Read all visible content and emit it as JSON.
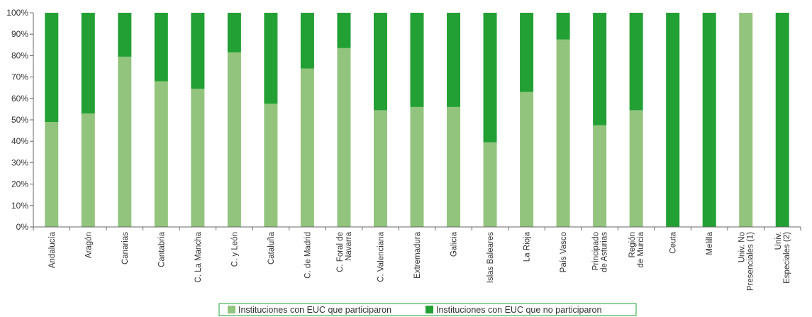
{
  "colors": {
    "participated": "#93c47d",
    "not_participated": "#22a033",
    "axis": "#666666",
    "legend_border": "#22a033"
  },
  "chart_data": {
    "type": "bar",
    "stacked": true,
    "percent": true,
    "ylim": [
      0,
      100
    ],
    "yticks": [
      "0%",
      "10%",
      "20%",
      "30%",
      "40%",
      "50%",
      "60%",
      "70%",
      "80%",
      "90%",
      "100%"
    ],
    "grid": false,
    "legend_position": "bottom-center",
    "categories": [
      [
        "Andalucía"
      ],
      [
        "Aragón"
      ],
      [
        "Canarias"
      ],
      [
        "Cantabria"
      ],
      [
        "C. La Mancha"
      ],
      [
        "C. y León"
      ],
      [
        "Cataluña"
      ],
      [
        "C. de Madrid"
      ],
      [
        "C. Foral de",
        "Navarra"
      ],
      [
        "C. Valenciana"
      ],
      [
        "Extremadura"
      ],
      [
        "Galicia"
      ],
      [
        "Islas Baleares"
      ],
      [
        "La Rioja"
      ],
      [
        "País Vasco"
      ],
      [
        "Principado",
        "de Asturias"
      ],
      [
        "Región",
        "de Murcia"
      ],
      [
        "Ceuta"
      ],
      [
        "Melilla"
      ],
      [
        "Univ. No",
        "Presenciales (1)"
      ],
      [
        "Univ.",
        "Especiales (2)"
      ]
    ],
    "series": [
      {
        "name": "Instituciones con EUC que participaron",
        "color_key": "participated",
        "values": [
          49,
          53,
          79.5,
          68,
          64.5,
          81.5,
          57.5,
          74,
          83.5,
          54.5,
          56,
          56,
          39.5,
          63,
          87.5,
          47.5,
          54.5,
          0,
          0,
          100,
          0
        ]
      },
      {
        "name": "Instituciones con EUC que no participaron",
        "color_key": "not_participated",
        "values": [
          51,
          47,
          20.5,
          32,
          35.5,
          18.5,
          42.5,
          26,
          16.5,
          45.5,
          44,
          44,
          60.5,
          37,
          12.5,
          52.5,
          45.5,
          100,
          100,
          0,
          100
        ]
      }
    ]
  }
}
